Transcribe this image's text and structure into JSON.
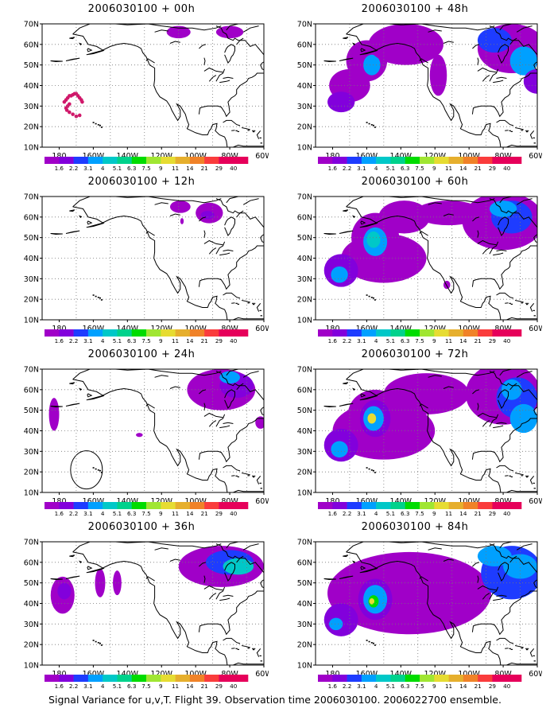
{
  "caption": "Signal Variance for u,v,T. Flight 39. Observation time 2006030100. 2006022700 ensemble.",
  "map": {
    "lat_labels": [
      "70N",
      "60N",
      "50N",
      "40N",
      "30N",
      "20N",
      "10N"
    ],
    "lon_labels": [
      "180",
      "160W",
      "140W",
      "120W",
      "100W",
      "80W",
      "60W"
    ]
  },
  "colorbar": {
    "labels": [
      "1.6",
      "2.2",
      "3.1",
      "4",
      "5.1",
      "6.3",
      "7.5",
      "9",
      "11",
      "14",
      "21",
      "29",
      "40"
    ],
    "colors": [
      "#a000c8",
      "#8200dc",
      "#1e3cff",
      "#00a0ff",
      "#00c8c8",
      "#00d28c",
      "#00dc00",
      "#a0e632",
      "#e6dc32",
      "#e6af2d",
      "#f08228",
      "#fa3c3c",
      "#e6005a"
    ]
  },
  "panels": [
    {
      "title": "2006030100 + 00h"
    },
    {
      "title": "2006030100 + 48h"
    },
    {
      "title": "2006030100 + 12h"
    },
    {
      "title": "2006030100 + 60h"
    },
    {
      "title": "2006030100 + 24h"
    },
    {
      "title": "2006030100 + 72h"
    },
    {
      "title": "2006030100 + 36h"
    },
    {
      "title": "2006030100 + 84h"
    }
  ]
}
